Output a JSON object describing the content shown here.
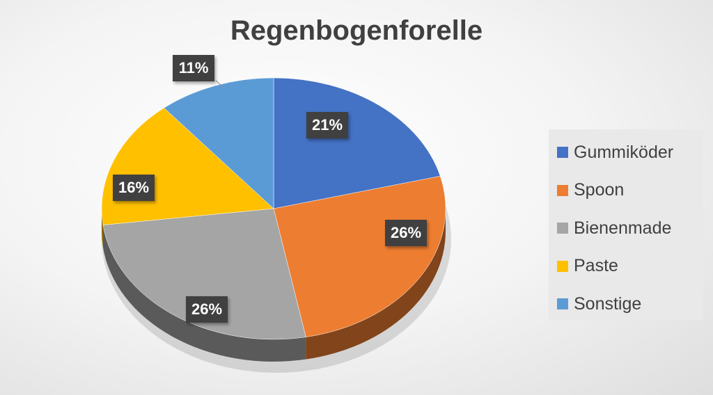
{
  "chart_data": {
    "type": "pie",
    "style": "3d",
    "title": "Regenbogenforelle",
    "categories": [
      "Gummiköder",
      "Spoon",
      "Bienenmade",
      "Paste",
      "Sonstige"
    ],
    "values": [
      21,
      26,
      26,
      16,
      11
    ],
    "labels": [
      "21%",
      "26%",
      "26%",
      "16%",
      "11%"
    ],
    "colors": [
      "#4472C4",
      "#ED7D31",
      "#A5A5A5",
      "#FFC000",
      "#5B9BD5"
    ],
    "legend_position": "right"
  }
}
